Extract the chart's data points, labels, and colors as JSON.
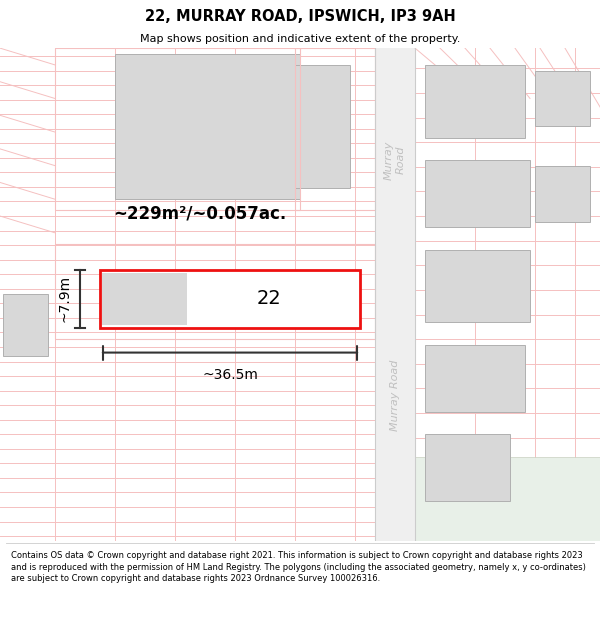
{
  "title": "22, MURRAY ROAD, IPSWICH, IP3 9AH",
  "subtitle": "Map shows position and indicative extent of the property.",
  "footer": "Contains OS data © Crown copyright and database right 2021. This information is subject to Crown copyright and database rights 2023 and is reproduced with the permission of HM Land Registry. The polygons (including the associated geometry, namely x, y co-ordinates) are subject to Crown copyright and database rights 2023 Ordnance Survey 100026316.",
  "area_label": "~229m²/~0.057ac.",
  "width_label": "~36.5m",
  "height_label": "~7.9m",
  "property_number": "22",
  "pink": "#f5c0c0",
  "building_fill": "#d8d8d8",
  "building_edge": "#b0b0b0",
  "road_fill": "#efefef",
  "road_text": "#c0c0c0",
  "green_fill": "#e8f0e8",
  "prop_red": "#ee1111",
  "dim_color": "#333333"
}
